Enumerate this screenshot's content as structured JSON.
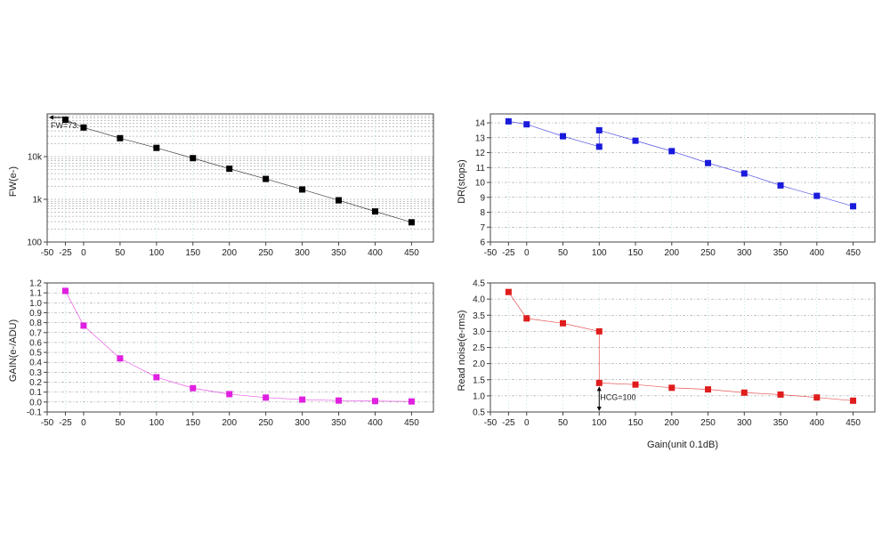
{
  "chart_data": [
    {
      "id": "fw",
      "type": "scatter",
      "ylabel": "FW(e-)",
      "xlabel": "",
      "yscale": "log",
      "xlim": [
        -50,
        480
      ],
      "ylim": [
        100,
        100000
      ],
      "x_ticks": [
        -50,
        -25,
        0,
        50,
        100,
        150,
        200,
        250,
        300,
        350,
        400,
        450
      ],
      "y_ticks": [
        100,
        1000,
        10000
      ],
      "y_tick_labels": [
        "100",
        "1k",
        "10k"
      ],
      "grid": true,
      "color": "#000000",
      "annotation": "FW=73.",
      "x": [
        -25,
        0,
        50,
        100,
        150,
        200,
        250,
        300,
        350,
        400,
        450
      ],
      "y": [
        73000,
        48000,
        27000,
        16000,
        9200,
        5200,
        3000,
        1700,
        950,
        520,
        290
      ]
    },
    {
      "id": "dr",
      "type": "scatter",
      "ylabel": "DR(stops)",
      "xlabel": "",
      "xlim": [
        -50,
        480
      ],
      "ylim": [
        6,
        14.6
      ],
      "x_ticks": [
        -50,
        -25,
        0,
        50,
        100,
        150,
        200,
        250,
        300,
        350,
        400,
        450
      ],
      "y_ticks": [
        6,
        7,
        8,
        9,
        10,
        11,
        12,
        13,
        14
      ],
      "grid": true,
      "color": "#1a1adc",
      "x": [
        -25,
        0,
        50,
        100,
        100,
        150,
        200,
        250,
        300,
        350,
        400,
        450
      ],
      "y": [
        14.1,
        13.9,
        13.1,
        12.4,
        13.5,
        12.8,
        12.1,
        11.3,
        10.6,
        9.8,
        9.1,
        8.4
      ]
    },
    {
      "id": "gain",
      "type": "scatter",
      "ylabel": "GAIN(e-/ADU)",
      "xlabel": "",
      "xlim": [
        -50,
        480
      ],
      "ylim": [
        -0.1,
        1.2
      ],
      "x_ticks": [
        -50,
        -25,
        0,
        50,
        100,
        150,
        200,
        250,
        300,
        350,
        400,
        450
      ],
      "y_ticks": [
        -0.1,
        0.0,
        0.1,
        0.2,
        0.3,
        0.4,
        0.5,
        0.6,
        0.7,
        0.8,
        0.9,
        1.0,
        1.1,
        1.2
      ],
      "y_tick_labels": [
        "-0.1",
        "0.0",
        "0.1",
        "0.2",
        "0.3",
        "0.4",
        "0.5",
        "0.6",
        "0.7",
        "0.8",
        "0.9",
        "1.0",
        "1.1",
        "1.2"
      ],
      "grid": true,
      "color": "#e020e0",
      "x": [
        -25,
        0,
        50,
        100,
        150,
        200,
        250,
        300,
        350,
        400,
        450
      ],
      "y": [
        1.12,
        0.77,
        0.44,
        0.25,
        0.14,
        0.08,
        0.045,
        0.025,
        0.015,
        0.01,
        0.006
      ]
    },
    {
      "id": "noise",
      "type": "scatter",
      "ylabel": "Read noise(e-rms)",
      "xlabel": "Gain(unit 0.1dB)",
      "xlim": [
        -50,
        480
      ],
      "ylim": [
        0.5,
        4.5
      ],
      "x_ticks": [
        -50,
        -25,
        0,
        50,
        100,
        150,
        200,
        250,
        300,
        350,
        400,
        450
      ],
      "y_ticks": [
        0.5,
        1.0,
        1.5,
        2.0,
        2.5,
        3.0,
        3.5,
        4.0,
        4.5
      ],
      "y_tick_labels": [
        "0.5",
        "1.0",
        "1.5",
        "2.0",
        "2.5",
        "3.0",
        "3.5",
        "4.0",
        "4.5"
      ],
      "grid": true,
      "color": "#e01c1c",
      "annotation": "HCG=100",
      "x": [
        -25,
        0,
        50,
        100,
        100,
        150,
        200,
        250,
        300,
        350,
        400,
        450
      ],
      "y": [
        4.22,
        3.4,
        3.25,
        3.0,
        1.4,
        1.35,
        1.25,
        1.2,
        1.1,
        1.04,
        0.95,
        0.85
      ]
    }
  ]
}
